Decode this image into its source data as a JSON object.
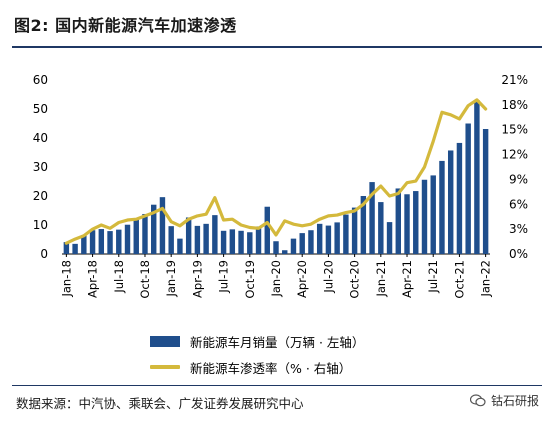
{
  "figure": {
    "title": "图2:  国内新能源汽车加速渗透",
    "source": "数据来源：中汽协、乘联会、广发证券发展研究中心",
    "watermark": "钴石研报"
  },
  "colors": {
    "bar": "#1f4e8c",
    "line": "#d4b93c",
    "rule": "#1f3864"
  },
  "chart_data": {
    "type": "bar",
    "x": [
      "Jan-18",
      "Feb-18",
      "Mar-18",
      "Apr-18",
      "May-18",
      "Jun-18",
      "Jul-18",
      "Aug-18",
      "Sep-18",
      "Oct-18",
      "Nov-18",
      "Dec-18",
      "Jan-19",
      "Feb-19",
      "Mar-19",
      "Apr-19",
      "May-19",
      "Jun-19",
      "Jul-19",
      "Aug-19",
      "Sep-19",
      "Oct-19",
      "Nov-19",
      "Dec-19",
      "Jan-20",
      "Feb-20",
      "Mar-20",
      "Apr-20",
      "May-20",
      "Jun-20",
      "Jul-20",
      "Aug-20",
      "Sep-20",
      "Oct-20",
      "Nov-20",
      "Dec-20",
      "Jan-21",
      "Feb-21",
      "Mar-21",
      "Apr-21",
      "May-21",
      "Jun-21",
      "Jul-21",
      "Aug-21",
      "Sep-21",
      "Oct-21",
      "Nov-21",
      "Dec-21",
      "Jan-22"
    ],
    "tick_labels": [
      "Jan-18",
      "Apr-18",
      "Jul-18",
      "Oct-18",
      "Jan-19",
      "Apr-19",
      "Jul-19",
      "Oct-19",
      "Jan-20",
      "Apr-20",
      "Jul-20",
      "Oct-20",
      "Jan-21",
      "Apr-21",
      "Jul-21",
      "Oct-21",
      "Jan-22"
    ],
    "series": [
      {
        "name": "新能源车月销量（万辆 · 左轴）",
        "type": "bar",
        "axis": "left",
        "values": [
          4.1,
          3.5,
          6.5,
          8.2,
          8.6,
          7.9,
          8.4,
          10.1,
          12.1,
          13.8,
          17.0,
          19.6,
          9.6,
          5.3,
          12.6,
          9.7,
          10.4,
          13.4,
          8.0,
          8.5,
          8.0,
          7.5,
          9.5,
          16.3,
          4.4,
          1.3,
          5.3,
          7.2,
          8.2,
          10.4,
          9.8,
          10.9,
          13.6,
          16.0,
          20.0,
          24.8,
          17.9,
          11.0,
          22.6,
          20.6,
          21.7,
          25.6,
          27.1,
          32.1,
          35.7,
          38.3,
          45.0,
          53.1,
          43.1
        ]
      },
      {
        "name": "新能源车渗透率（% · 右轴）",
        "type": "line",
        "axis": "right",
        "values": [
          1.3,
          1.8,
          2.2,
          3.0,
          3.5,
          3.1,
          3.8,
          4.1,
          4.2,
          4.6,
          5.0,
          5.5,
          3.9,
          3.4,
          4.2,
          4.6,
          4.8,
          6.8,
          4.1,
          4.2,
          3.5,
          3.2,
          3.1,
          3.8,
          2.3,
          4.0,
          3.6,
          3.4,
          3.6,
          4.2,
          4.6,
          4.7,
          5.0,
          5.2,
          6.0,
          7.2,
          8.2,
          7.0,
          7.3,
          8.6,
          8.8,
          10.5,
          13.6,
          17.1,
          16.8,
          16.3,
          17.9,
          18.6,
          17.5
        ]
      }
    ],
    "y_left": {
      "ticks": [
        "0",
        "10",
        "20",
        "30",
        "40",
        "50",
        "60"
      ],
      "range": [
        0,
        60
      ]
    },
    "y_right": {
      "ticks": [
        "0%",
        "3%",
        "6%",
        "9%",
        "12%",
        "15%",
        "18%",
        "21%"
      ],
      "range": [
        0,
        21
      ]
    },
    "grid": false,
    "legend_position": "bottom"
  }
}
